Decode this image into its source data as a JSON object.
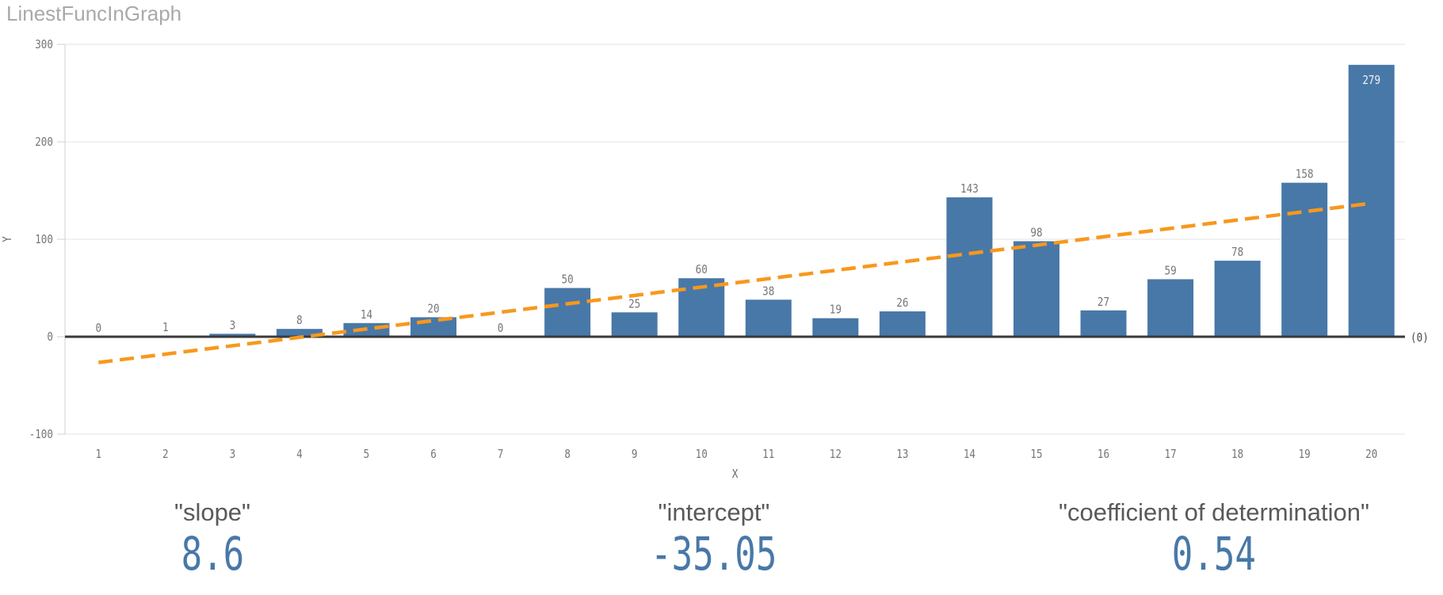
{
  "title": "LinestFuncInGraph",
  "colors": {
    "bar": "#4878a8",
    "trend": "#f8981d",
    "grid": "#e3e3e3",
    "axis": "#d2d2d2",
    "zero_line": "#3a3a3a",
    "tick_text": "#767676",
    "axis_title_text": "#6b6b6b",
    "value_label": "#767676",
    "value_label_inside": "#f2f2f2",
    "kpi_label": "#595959",
    "kpi_value": "#4878a8",
    "title_text": "#a9a9a9"
  },
  "chart_data": {
    "type": "bar",
    "title": "LinestFuncInGraph",
    "x": [
      1,
      2,
      3,
      4,
      5,
      6,
      7,
      8,
      9,
      10,
      11,
      12,
      13,
      14,
      15,
      16,
      17,
      18,
      19,
      20
    ],
    "values": [
      0,
      1,
      3,
      8,
      14,
      20,
      0,
      50,
      25,
      60,
      38,
      19,
      26,
      143,
      98,
      27,
      59,
      78,
      158,
      279
    ],
    "xlabel": "X",
    "ylabel": "Y",
    "ylim": [
      -100,
      300
    ],
    "yticks": [
      -100,
      0,
      100,
      200,
      300
    ],
    "grid": true,
    "legend": false,
    "bar_labels_shown": true,
    "zero_reference_label": "(0)",
    "trend_line": {
      "type": "linear_regression",
      "slope": 8.6,
      "intercept": -35.05,
      "x_start": 1,
      "x_end": 20,
      "style": "dashed",
      "color": "#f8981d"
    }
  },
  "kpis": [
    {
      "label": "\"slope\"",
      "value": "8.6"
    },
    {
      "label": "\"intercept\"",
      "value": "-35.05"
    },
    {
      "label": "\"coefficient of determination\"",
      "value": "0.54"
    }
  ]
}
